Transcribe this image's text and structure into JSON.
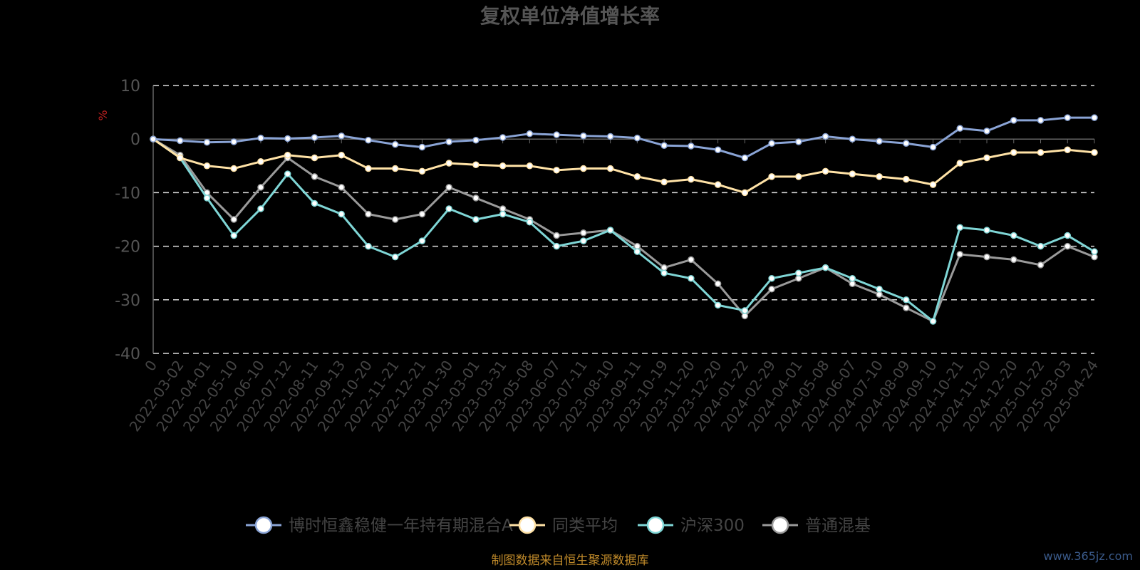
{
  "chart_data": {
    "type": "line",
    "title": "复权单位净值增长率",
    "ylabel": "%",
    "ylim": [
      -40,
      10
    ],
    "yticks": [
      10,
      0,
      -10,
      -20,
      -30,
      -40
    ],
    "xticks": [
      "0",
      "2022-03-02",
      "2022-04-01",
      "2022-05-10",
      "2022-06-10",
      "2022-07-12",
      "2022-08-11",
      "2022-09-13",
      "2022-10-20",
      "2022-11-21",
      "2022-12-21",
      "2023-01-30",
      "2023-03-01",
      "2023-03-31",
      "2023-05-08",
      "2023-06-07",
      "2023-07-11",
      "2023-08-10",
      "2023-09-11",
      "2023-10-19",
      "2023-11-20",
      "2023-12-20",
      "2024-01-22",
      "2024-02-29",
      "2024-04-01",
      "2024-05-08",
      "2024-06-07",
      "2024-07-10",
      "2024-08-09",
      "2024-09-10",
      "2024-10-21",
      "2024-11-20",
      "2024-12-20",
      "2025-01-22",
      "2025-03-03",
      "2025-04-24"
    ],
    "grid": "dashed horizontal",
    "legend_position": "bottom",
    "series": [
      {
        "name": "博时恒鑫稳健一年持有期混合A",
        "color": "#8aa4d6",
        "values": [
          0,
          -0.3,
          -0.6,
          -0.5,
          0.2,
          0.1,
          0.3,
          0.6,
          -0.2,
          -1.0,
          -1.5,
          -0.5,
          -0.2,
          0.3,
          1.0,
          0.8,
          0.6,
          0.5,
          0.2,
          -1.2,
          -1.3,
          -2.0,
          -3.5,
          -0.8,
          -0.5,
          0.5,
          0.0,
          -0.4,
          -0.8,
          -1.5,
          2.0,
          1.5,
          3.5,
          3.5,
          4.0,
          4.0
        ]
      },
      {
        "name": "同类平均",
        "color": "#ffe2a6",
        "values": [
          0,
          -3.5,
          -5.0,
          -5.5,
          -4.2,
          -3.0,
          -3.5,
          -3.0,
          -5.5,
          -5.5,
          -6.0,
          -4.5,
          -4.8,
          -5.0,
          -5.0,
          -5.8,
          -5.5,
          -5.5,
          -7.0,
          -8.0,
          -7.5,
          -8.5,
          -10.0,
          -7.0,
          -7.0,
          -6.0,
          -6.5,
          -7.0,
          -7.5,
          -8.5,
          -4.5,
          -3.5,
          -2.5,
          -2.5,
          -2.0,
          -2.5
        ]
      },
      {
        "name": "沪深300",
        "color": "#7fd6d6",
        "values": [
          0,
          -3.5,
          -11.0,
          -18.0,
          -13.0,
          -6.5,
          -12.0,
          -14.0,
          -20.0,
          -22.0,
          -19.0,
          -13.0,
          -15.0,
          -14.0,
          -15.5,
          -20.0,
          -19.0,
          -17.0,
          -21.0,
          -25.0,
          -26.0,
          -31.0,
          -32.0,
          -26.0,
          -25.0,
          -24.0,
          -26.0,
          -28.0,
          -30.0,
          -34.0,
          -16.5,
          -17.0,
          -18.0,
          -20.0,
          -18.0,
          -21.0
        ]
      },
      {
        "name": "普通混基",
        "color": "#9a9a9a",
        "values": [
          0,
          -3.0,
          -10.0,
          -15.0,
          -9.0,
          -3.5,
          -7.0,
          -9.0,
          -14.0,
          -15.0,
          -14.0,
          -9.0,
          -11.0,
          -13.0,
          -15.0,
          -18.0,
          -17.5,
          -17.0,
          -20.0,
          -24.0,
          -22.5,
          -27.0,
          -33.0,
          -28.0,
          -26.0,
          -24.0,
          -27.0,
          -29.0,
          -31.5,
          -34.0,
          -21.5,
          -22.0,
          -22.5,
          -23.5,
          -20.0,
          -22.0
        ]
      }
    ]
  },
  "source_note": "制图数据来自恒生聚源数据库",
  "watermark": "www.365jz.com"
}
